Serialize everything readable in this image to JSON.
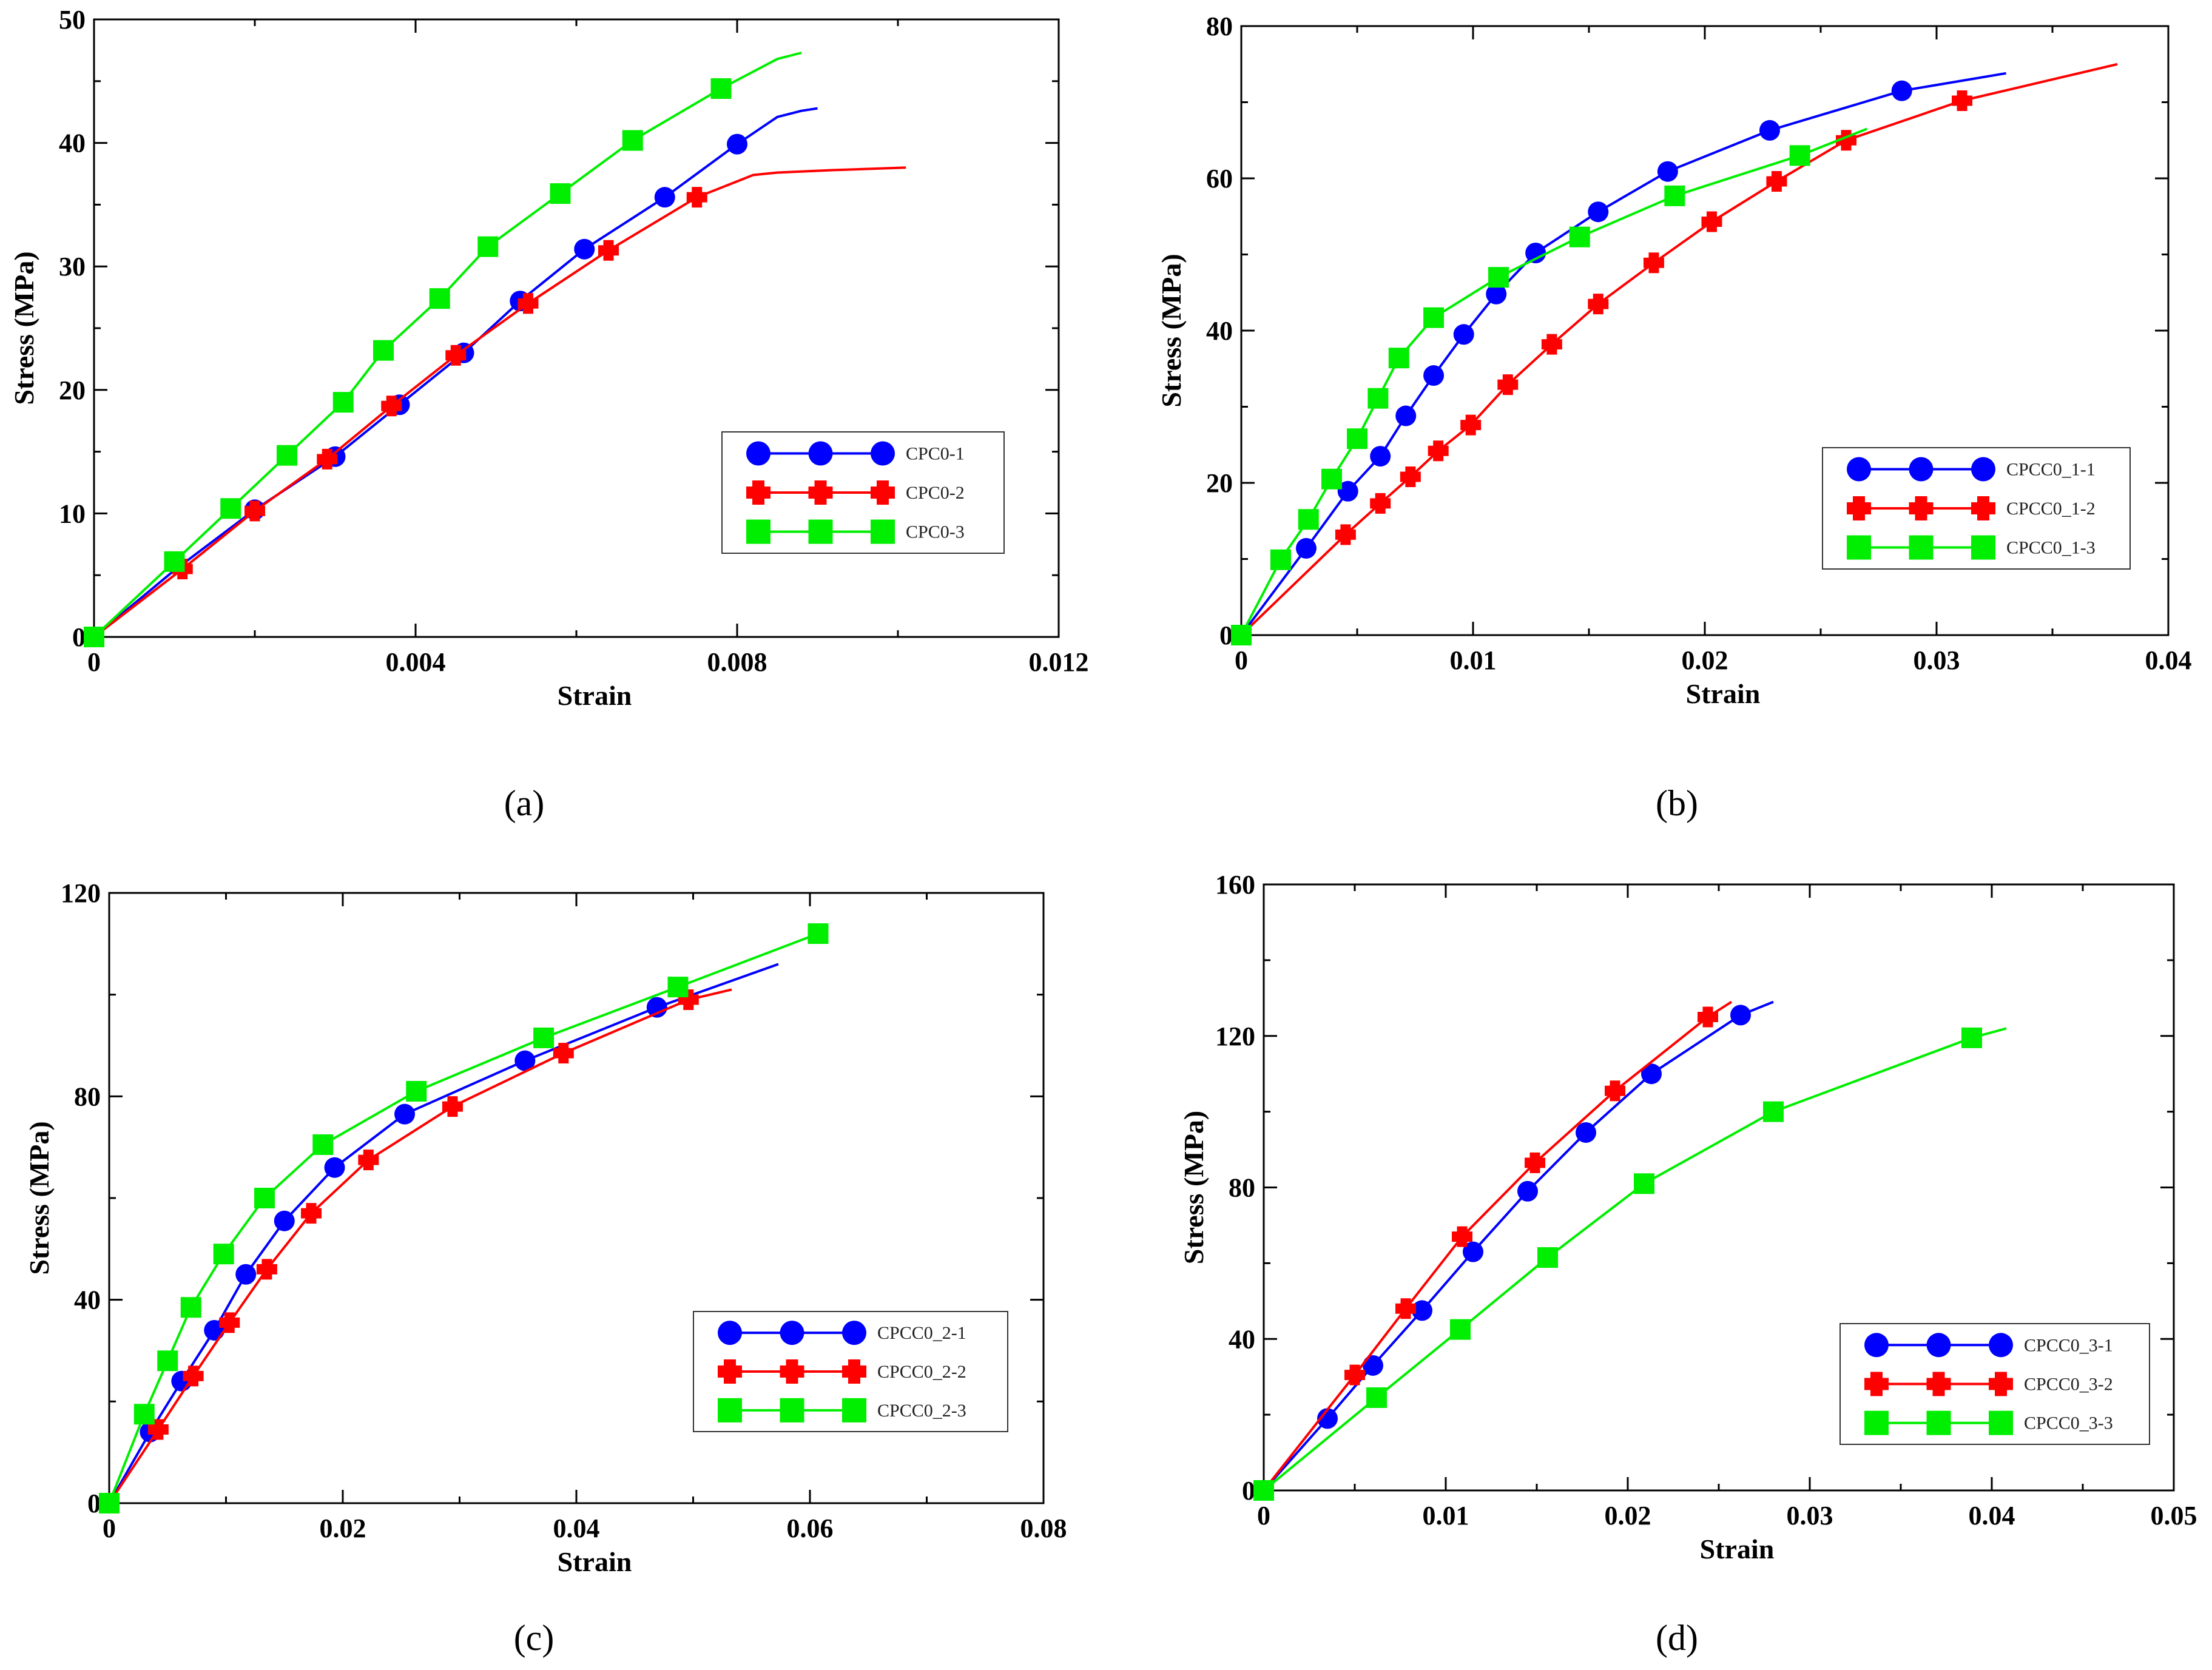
{
  "panel_labels": [
    "(a)",
    "(b)",
    "(c)",
    "(d)"
  ],
  "chart_data": [
    {
      "type": "line",
      "label": "(a)",
      "xlabel": "Strain",
      "ylabel": "Stress (MPa)",
      "xlim": [
        0,
        0.012
      ],
      "ylim": [
        0,
        50
      ],
      "xticks": [
        0,
        0.004,
        0.008,
        0.012
      ],
      "xtick_labels": [
        "0",
        "0.004",
        "0.008",
        "0.012"
      ],
      "yticks": [
        0,
        10,
        20,
        30,
        40,
        50
      ],
      "ytick_labels": [
        "0",
        "10",
        "20",
        "30",
        "40",
        "50"
      ],
      "legend_position": "center-right",
      "series": [
        {
          "name": "CPC0-1",
          "color": "#0000ff",
          "marker": "circle",
          "x": [
            0,
            0.001,
            0.002,
            0.003,
            0.0038,
            0.0046,
            0.0053,
            0.0061,
            0.0071,
            0.008,
            0.0085,
            0.0088,
            0.009
          ],
          "y": [
            0,
            5.4,
            10.3,
            14.6,
            18.8,
            23.0,
            27.2,
            31.4,
            35.6,
            39.9,
            42.1,
            42.6,
            42.8
          ],
          "marker_idx": [
            0,
            2,
            3,
            4,
            5,
            6,
            7,
            8,
            9
          ]
        },
        {
          "name": "CPC0-2",
          "color": "#ff0000",
          "marker": "plus",
          "x": [
            0,
            0.0011,
            0.002,
            0.0029,
            0.0037,
            0.0045,
            0.0054,
            0.0064,
            0.0075,
            0.0082,
            0.0085,
            0.0092,
            0.0101
          ],
          "y": [
            0,
            5.5,
            10.2,
            14.4,
            18.7,
            22.8,
            27.0,
            31.3,
            35.6,
            37.4,
            37.6,
            37.8,
            38.0
          ],
          "marker_idx": [
            1,
            2,
            3,
            4,
            5,
            6,
            7,
            8
          ]
        },
        {
          "name": "CPC0-3",
          "color": "#00ee00",
          "marker": "square",
          "x": [
            0,
            0.001,
            0.0017,
            0.0024,
            0.0031,
            0.0036,
            0.0043,
            0.0049,
            0.0058,
            0.0067,
            0.0078,
            0.0085,
            0.0088
          ],
          "y": [
            0,
            6.1,
            10.4,
            14.7,
            19.0,
            23.2,
            27.4,
            31.6,
            35.9,
            40.2,
            44.4,
            46.8,
            47.3
          ],
          "marker_idx": [
            0,
            1,
            2,
            3,
            4,
            5,
            6,
            7,
            8,
            9,
            10
          ]
        }
      ]
    },
    {
      "type": "line",
      "label": "(b)",
      "xlabel": "Strain",
      "ylabel": "Stress (MPa)",
      "xlim": [
        0,
        0.04
      ],
      "ylim": [
        0,
        80
      ],
      "xticks": [
        0,
        0.01,
        0.02,
        0.03,
        0.04
      ],
      "xtick_labels": [
        "0",
        "0.01",
        "0.02",
        "0.03",
        "0.04"
      ],
      "yticks": [
        0,
        20,
        40,
        60,
        80
      ],
      "ytick_labels": [
        "0",
        "20",
        "40",
        "60",
        "80"
      ],
      "legend_position": "center-right",
      "series": [
        {
          "name": "CPCC0_1-1",
          "color": "#0000ff",
          "marker": "circle",
          "x": [
            0,
            0.0028,
            0.0046,
            0.006,
            0.0071,
            0.0083,
            0.0096,
            0.011,
            0.0127,
            0.0154,
            0.0184,
            0.0228,
            0.0285,
            0.033
          ],
          "y": [
            0,
            11.4,
            18.9,
            23.5,
            28.8,
            34.1,
            39.5,
            44.8,
            50.2,
            55.6,
            60.9,
            66.3,
            71.5,
            73.8
          ],
          "marker_idx": [
            0,
            1,
            2,
            3,
            4,
            5,
            6,
            7,
            8,
            9,
            10,
            11,
            12
          ]
        },
        {
          "name": "CPCC0_1-2",
          "color": "#ff0000",
          "marker": "plus",
          "x": [
            0,
            0.0045,
            0.006,
            0.0073,
            0.0085,
            0.0099,
            0.0115,
            0.0134,
            0.0154,
            0.0178,
            0.0203,
            0.0231,
            0.0261,
            0.0311,
            0.0378
          ],
          "y": [
            0,
            13.2,
            17.3,
            20.8,
            24.2,
            27.6,
            32.9,
            38.2,
            43.5,
            48.9,
            54.3,
            59.6,
            65.0,
            70.2,
            75.0
          ],
          "marker_idx": [
            0,
            1,
            2,
            3,
            4,
            5,
            6,
            7,
            8,
            9,
            10,
            11,
            12,
            13
          ]
        },
        {
          "name": "CPCC0_1-3",
          "color": "#00ee00",
          "marker": "square",
          "x": [
            0,
            0.0017,
            0.0029,
            0.0039,
            0.005,
            0.0059,
            0.0068,
            0.0083,
            0.0111,
            0.0146,
            0.0187,
            0.0241,
            0.027
          ],
          "y": [
            0,
            9.9,
            15.2,
            20.5,
            25.8,
            31.1,
            36.4,
            41.7,
            47.0,
            52.3,
            57.7,
            63.0,
            66.5
          ],
          "marker_idx": [
            0,
            1,
            2,
            3,
            4,
            5,
            6,
            7,
            8,
            9,
            10,
            11
          ]
        }
      ]
    },
    {
      "type": "line",
      "label": "(c)",
      "xlabel": "Strain",
      "ylabel": "Stress (MPa)",
      "xlim": [
        0,
        0.08
      ],
      "ylim": [
        0,
        120
      ],
      "xticks": [
        0,
        0.02,
        0.04,
        0.06,
        0.08
      ],
      "xtick_labels": [
        "0",
        "0.02",
        "0.04",
        "0.06",
        "0.08"
      ],
      "yticks": [
        0,
        40,
        80,
        120
      ],
      "ytick_labels": [
        "0",
        "40",
        "80",
        "120"
      ],
      "legend_position": "bottom-right",
      "series": [
        {
          "name": "CPCC0_2-1",
          "color": "#0000ff",
          "marker": "circle",
          "x": [
            0,
            0.0035,
            0.0062,
            0.009,
            0.0117,
            0.015,
            0.0193,
            0.0253,
            0.0356,
            0.0469,
            0.0573
          ],
          "y": [
            0,
            14.0,
            24.0,
            34.0,
            45.0,
            55.5,
            66.0,
            76.5,
            87.0,
            97.5,
            106.0
          ],
          "marker_idx": [
            0,
            1,
            2,
            3,
            4,
            5,
            6,
            7,
            8,
            9
          ]
        },
        {
          "name": "CPCC0_2-2",
          "color": "#ff0000",
          "marker": "plus",
          "x": [
            0,
            0.0042,
            0.0072,
            0.0103,
            0.0135,
            0.0173,
            0.0222,
            0.0294,
            0.0389,
            0.0496,
            0.0533
          ],
          "y": [
            0,
            14.5,
            25.0,
            35.5,
            46.0,
            57.0,
            67.5,
            78.0,
            88.5,
            99.0,
            101.0
          ],
          "marker_idx": [
            0,
            1,
            2,
            3,
            4,
            5,
            6,
            7,
            8,
            9
          ]
        },
        {
          "name": "CPCC0_2-3",
          "color": "#00ee00",
          "marker": "square",
          "x": [
            0,
            0.003,
            0.005,
            0.007,
            0.0098,
            0.0133,
            0.0183,
            0.0263,
            0.0372,
            0.0487,
            0.0607
          ],
          "y": [
            0,
            17.5,
            28.0,
            38.5,
            49.0,
            60.0,
            70.5,
            81.0,
            91.5,
            101.5,
            112.0
          ],
          "marker_idx": [
            0,
            1,
            2,
            3,
            4,
            5,
            6,
            7,
            8,
            9,
            10
          ]
        }
      ]
    },
    {
      "type": "line",
      "label": "(d)",
      "xlabel": "Strain",
      "ylabel": "Stress (MPa)",
      "xlim": [
        0,
        0.05
      ],
      "ylim": [
        0,
        160
      ],
      "xticks": [
        0,
        0.01,
        0.02,
        0.03,
        0.04,
        0.05
      ],
      "xtick_labels": [
        "0",
        "0.01",
        "0.02",
        "0.03",
        "0.04",
        "0.05"
      ],
      "yticks": [
        0,
        40,
        80,
        120,
        160
      ],
      "ytick_labels": [
        "0",
        "40",
        "80",
        "120",
        "160"
      ],
      "legend_position": "bottom-right",
      "series": [
        {
          "name": "CPCC0_3-1",
          "color": "#0000ff",
          "marker": "circle",
          "x": [
            0,
            0.0035,
            0.006,
            0.0087,
            0.0115,
            0.0145,
            0.0177,
            0.0213,
            0.0262,
            0.028
          ],
          "y": [
            0,
            19.0,
            33.0,
            47.5,
            63.0,
            79.0,
            94.5,
            110.0,
            125.5,
            129.0
          ],
          "marker_idx": [
            0,
            1,
            2,
            3,
            4,
            5,
            6,
            7,
            8
          ]
        },
        {
          "name": "CPCC0_3-2",
          "color": "#ff0000",
          "marker": "plus",
          "x": [
            0,
            0.005,
            0.0078,
            0.0109,
            0.0149,
            0.0193,
            0.0244,
            0.0257
          ],
          "y": [
            0,
            30.5,
            48.0,
            67.0,
            86.5,
            105.5,
            125.0,
            129.0
          ],
          "marker_idx": [
            0,
            1,
            2,
            3,
            4,
            5,
            6
          ]
        },
        {
          "name": "CPCC0_3-3",
          "color": "#00ee00",
          "marker": "square",
          "x": [
            0,
            0.0062,
            0.0108,
            0.0156,
            0.0209,
            0.028,
            0.0389,
            0.0408
          ],
          "y": [
            0,
            24.5,
            42.5,
            61.5,
            81.0,
            100.0,
            119.5,
            122.0
          ],
          "marker_idx": [
            0,
            1,
            2,
            3,
            4,
            5,
            6
          ]
        }
      ]
    }
  ]
}
